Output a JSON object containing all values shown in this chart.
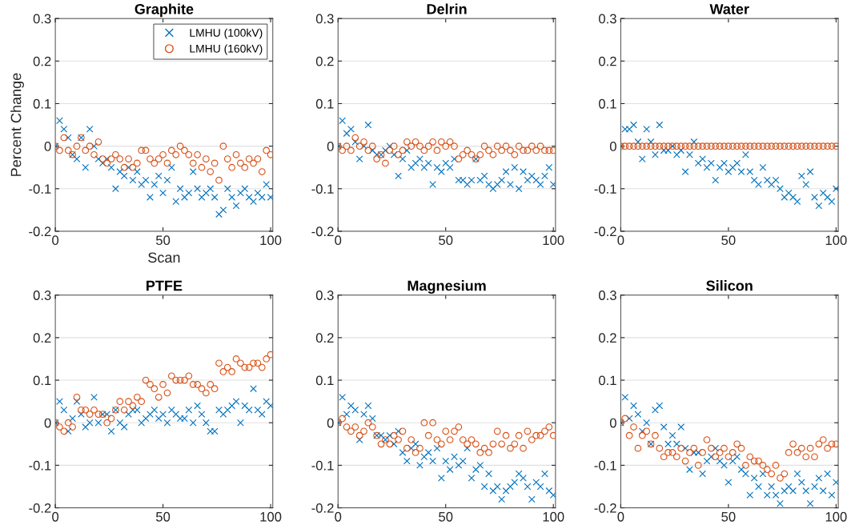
{
  "chart_data": [
    {
      "type": "scatter",
      "title": "Graphite",
      "xlabel": "Scan",
      "ylabel": "Percent Change",
      "xlim": [
        0,
        101
      ],
      "xticks": [
        0,
        50,
        100
      ],
      "ylim": [
        -0.2,
        0.3
      ],
      "yticks": [
        -0.2,
        -0.1,
        0,
        0.1,
        0.2,
        0.3
      ],
      "grid": "y",
      "legend": "top right",
      "x": [
        0,
        2,
        4,
        6,
        8,
        10,
        12,
        14,
        16,
        18,
        20,
        22,
        24,
        26,
        28,
        30,
        32,
        34,
        36,
        38,
        40,
        42,
        44,
        46,
        48,
        50,
        52,
        54,
        56,
        58,
        60,
        62,
        64,
        66,
        68,
        70,
        72,
        74,
        76,
        78,
        80,
        82,
        84,
        86,
        88,
        90,
        92,
        94,
        96,
        98,
        100
      ],
      "series": [
        {
          "name": "LMHU (100kV)",
          "color": "#0072bd",
          "marker": "cross",
          "values": [
            0,
            0.06,
            0.04,
            0.02,
            -0.02,
            -0.03,
            0.02,
            -0.05,
            0.04,
            0.0,
            -0.03,
            -0.04,
            -0.03,
            -0.05,
            -0.1,
            -0.06,
            -0.07,
            -0.05,
            -0.08,
            -0.06,
            -0.09,
            -0.08,
            -0.12,
            -0.09,
            -0.07,
            -0.11,
            -0.08,
            -0.05,
            -0.13,
            -0.1,
            -0.12,
            -0.11,
            -0.06,
            -0.1,
            -0.12,
            -0.11,
            -0.1,
            -0.12,
            -0.16,
            -0.15,
            -0.1,
            -0.12,
            -0.14,
            -0.11,
            -0.1,
            -0.12,
            -0.13,
            -0.11,
            -0.12,
            -0.09,
            -0.12
          ]
        },
        {
          "name": "LMHU (160kV)",
          "color": "#d95319",
          "marker": "circle",
          "values": [
            0,
            -0.01,
            0.02,
            -0.01,
            -0.02,
            0.0,
            0.02,
            -0.01,
            0.0,
            -0.02,
            0.01,
            -0.03,
            -0.04,
            -0.03,
            -0.02,
            -0.03,
            -0.05,
            -0.03,
            -0.05,
            -0.04,
            -0.01,
            -0.01,
            -0.03,
            -0.04,
            -0.03,
            -0.02,
            -0.04,
            -0.01,
            -0.02,
            0.0,
            -0.01,
            -0.02,
            -0.04,
            -0.02,
            -0.05,
            -0.03,
            -0.06,
            -0.04,
            -0.08,
            0.0,
            -0.03,
            -0.05,
            -0.02,
            -0.04,
            -0.05,
            -0.03,
            -0.04,
            -0.03,
            -0.06,
            -0.01,
            -0.02
          ]
        }
      ]
    },
    {
      "type": "scatter",
      "title": "Delrin",
      "xlim": [
        0,
        101
      ],
      "xticks": [
        0,
        50,
        100
      ],
      "ylim": [
        -0.2,
        0.3
      ],
      "yticks": [
        -0.2,
        -0.1,
        0,
        0.1,
        0.2,
        0.3
      ],
      "grid": "y",
      "x": [
        0,
        2,
        4,
        6,
        8,
        10,
        12,
        14,
        16,
        18,
        20,
        22,
        24,
        26,
        28,
        30,
        32,
        34,
        36,
        38,
        40,
        42,
        44,
        46,
        48,
        50,
        52,
        54,
        56,
        58,
        60,
        62,
        64,
        66,
        68,
        70,
        72,
        74,
        76,
        78,
        80,
        82,
        84,
        86,
        88,
        90,
        92,
        94,
        96,
        98,
        100
      ],
      "series": [
        {
          "color": "#0072bd",
          "marker": "cross",
          "values": [
            0,
            0.06,
            0.03,
            0.04,
            0.01,
            -0.03,
            0.0,
            0.05,
            -0.01,
            -0.02,
            -0.02,
            -0.01,
            0.0,
            -0.02,
            -0.07,
            -0.03,
            -0.01,
            -0.05,
            -0.04,
            -0.03,
            -0.05,
            -0.04,
            -0.09,
            -0.05,
            -0.06,
            -0.04,
            -0.05,
            -0.03,
            -0.08,
            -0.08,
            -0.09,
            -0.08,
            -0.03,
            -0.08,
            -0.07,
            -0.09,
            -0.1,
            -0.09,
            -0.08,
            -0.06,
            -0.09,
            -0.05,
            -0.1,
            -0.06,
            -0.08,
            -0.07,
            -0.08,
            -0.09,
            -0.07,
            -0.05,
            -0.09
          ]
        },
        {
          "color": "#d95319",
          "marker": "circle",
          "values": [
            0,
            -0.01,
            0.0,
            -0.01,
            0.02,
            0.0,
            0.01,
            -0.01,
            0.0,
            -0.03,
            -0.02,
            -0.04,
            -0.01,
            0.0,
            -0.02,
            -0.01,
            0.01,
            0.0,
            0.01,
            0.0,
            -0.01,
            0.0,
            0.01,
            -0.01,
            0.01,
            0.0,
            0.01,
            0.0,
            -0.03,
            -0.02,
            -0.01,
            -0.02,
            -0.03,
            -0.02,
            0.0,
            -0.01,
            -0.02,
            0.0,
            -0.01,
            0.0,
            -0.01,
            -0.02,
            0.0,
            -0.01,
            -0.01,
            0.0,
            -0.01,
            0.0,
            -0.01,
            -0.01,
            -0.01
          ]
        }
      ]
    },
    {
      "type": "scatter",
      "title": "Water",
      "xlim": [
        0,
        101
      ],
      "xticks": [
        0,
        50,
        100
      ],
      "ylim": [
        -0.2,
        0.3
      ],
      "yticks": [
        -0.2,
        -0.1,
        0,
        0.1,
        0.2,
        0.3
      ],
      "grid": "y",
      "x": [
        0,
        2,
        4,
        6,
        8,
        10,
        12,
        14,
        16,
        18,
        20,
        22,
        24,
        26,
        28,
        30,
        32,
        34,
        36,
        38,
        40,
        42,
        44,
        46,
        48,
        50,
        52,
        54,
        56,
        58,
        60,
        62,
        64,
        66,
        68,
        70,
        72,
        74,
        76,
        78,
        80,
        82,
        84,
        86,
        88,
        90,
        92,
        94,
        96,
        98,
        100
      ],
      "series": [
        {
          "color": "#0072bd",
          "marker": "cross",
          "values": [
            0,
            0.04,
            0.04,
            0.05,
            0.01,
            -0.03,
            0.04,
            0.01,
            -0.02,
            0.05,
            -0.01,
            -0.01,
            0.0,
            -0.02,
            -0.01,
            -0.06,
            -0.02,
            0.01,
            -0.04,
            -0.03,
            -0.05,
            -0.04,
            -0.08,
            -0.05,
            -0.04,
            -0.06,
            -0.05,
            -0.04,
            -0.06,
            -0.02,
            -0.06,
            -0.08,
            -0.09,
            -0.05,
            -0.08,
            -0.09,
            -0.08,
            -0.1,
            -0.12,
            -0.11,
            -0.12,
            -0.13,
            -0.07,
            -0.09,
            -0.06,
            -0.12,
            -0.14,
            -0.11,
            -0.12,
            -0.13,
            -0.1
          ]
        },
        {
          "color": "#d95319",
          "marker": "circle",
          "values": [
            0,
            0,
            0,
            0,
            0,
            0,
            0,
            0,
            0,
            0,
            0,
            0,
            0,
            0,
            0,
            0,
            0,
            0,
            0,
            0,
            0,
            0,
            0,
            0,
            0,
            0,
            0,
            0,
            0,
            0,
            0,
            0,
            0,
            0,
            0,
            0,
            0,
            0,
            0,
            0,
            0,
            0,
            0,
            0,
            0,
            0,
            0,
            0,
            0,
            0,
            0
          ]
        }
      ]
    },
    {
      "type": "scatter",
      "title": "PTFE",
      "xlim": [
        0,
        101
      ],
      "xticks": [
        0,
        50,
        100
      ],
      "ylim": [
        -0.2,
        0.3
      ],
      "yticks": [
        -0.2,
        -0.1,
        0,
        0.1,
        0.2,
        0.3
      ],
      "grid": "y",
      "x": [
        0,
        2,
        4,
        6,
        8,
        10,
        12,
        14,
        16,
        18,
        20,
        22,
        24,
        26,
        28,
        30,
        32,
        34,
        36,
        38,
        40,
        42,
        44,
        46,
        48,
        50,
        52,
        54,
        56,
        58,
        60,
        62,
        64,
        66,
        68,
        70,
        72,
        74,
        76,
        78,
        80,
        82,
        84,
        86,
        88,
        90,
        92,
        94,
        96,
        98,
        100
      ],
      "series": [
        {
          "color": "#0072bd",
          "marker": "cross",
          "values": [
            0,
            0.05,
            0.03,
            -0.02,
            0.01,
            0.05,
            0.02,
            -0.01,
            0.0,
            0.06,
            0.0,
            0.02,
            0.02,
            -0.02,
            0.03,
            0.0,
            -0.01,
            0.02,
            0.03,
            0.03,
            0.0,
            0.01,
            0.02,
            0.03,
            0.01,
            0.02,
            0.0,
            0.03,
            0.02,
            0.01,
            0.01,
            0.03,
            0.0,
            0.04,
            0.02,
            0.0,
            -0.02,
            -0.02,
            0.03,
            0.02,
            0.03,
            0.04,
            0.05,
            0.0,
            0.04,
            0.03,
            0.08,
            0.03,
            0.02,
            0.05,
            0.04
          ]
        },
        {
          "color": "#d95319",
          "marker": "circle",
          "values": [
            0,
            -0.01,
            -0.02,
            0.0,
            -0.01,
            0.06,
            0.03,
            0.03,
            0.02,
            0.03,
            0.02,
            0.02,
            0.0,
            0.01,
            0.03,
            0.05,
            0.03,
            0.05,
            0.04,
            0.06,
            0.05,
            0.1,
            0.09,
            0.08,
            0.06,
            0.09,
            0.07,
            0.11,
            0.1,
            0.1,
            0.1,
            0.11,
            0.09,
            0.09,
            0.08,
            0.07,
            0.09,
            0.08,
            0.14,
            0.12,
            0.13,
            0.12,
            0.15,
            0.14,
            0.13,
            0.13,
            0.14,
            0.14,
            0.13,
            0.15,
            0.16
          ]
        }
      ]
    },
    {
      "type": "scatter",
      "title": "Magnesium",
      "xlim": [
        0,
        101
      ],
      "xticks": [
        0,
        50,
        100
      ],
      "ylim": [
        -0.2,
        0.3
      ],
      "yticks": [
        -0.2,
        -0.1,
        0,
        0.1,
        0.2,
        0.3
      ],
      "grid": "y",
      "x": [
        0,
        2,
        4,
        6,
        8,
        10,
        12,
        14,
        16,
        18,
        20,
        22,
        24,
        26,
        28,
        30,
        32,
        34,
        36,
        38,
        40,
        42,
        44,
        46,
        48,
        50,
        52,
        54,
        56,
        58,
        60,
        62,
        64,
        66,
        68,
        70,
        72,
        74,
        76,
        78,
        80,
        82,
        84,
        86,
        88,
        90,
        92,
        94,
        96,
        98,
        100
      ],
      "series": [
        {
          "color": "#0072bd",
          "marker": "cross",
          "values": [
            0,
            0.06,
            0.02,
            0.04,
            0.03,
            -0.04,
            0.02,
            0.04,
            0.01,
            -0.03,
            -0.03,
            -0.04,
            -0.03,
            -0.05,
            -0.02,
            -0.07,
            -0.09,
            -0.06,
            -0.05,
            -0.1,
            -0.08,
            -0.07,
            -0.09,
            -0.06,
            -0.13,
            -0.09,
            -0.11,
            -0.08,
            -0.1,
            -0.09,
            -0.06,
            -0.13,
            -0.11,
            -0.1,
            -0.15,
            -0.12,
            -0.16,
            -0.15,
            -0.18,
            -0.16,
            -0.15,
            -0.14,
            -0.12,
            -0.13,
            -0.15,
            -0.18,
            -0.14,
            -0.15,
            -0.12,
            -0.16,
            -0.17
          ]
        },
        {
          "color": "#d95319",
          "marker": "circle",
          "values": [
            0,
            0.01,
            -0.01,
            -0.02,
            -0.01,
            -0.03,
            -0.02,
            0.0,
            -0.01,
            -0.03,
            -0.05,
            -0.04,
            -0.05,
            -0.03,
            -0.04,
            -0.02,
            -0.06,
            -0.04,
            -0.07,
            -0.06,
            0.0,
            -0.03,
            0.0,
            -0.04,
            -0.05,
            -0.02,
            -0.04,
            -0.02,
            -0.01,
            -0.04,
            -0.05,
            -0.04,
            -0.05,
            -0.07,
            -0.06,
            -0.07,
            -0.05,
            -0.02,
            -0.05,
            -0.03,
            -0.06,
            -0.05,
            -0.03,
            -0.06,
            -0.02,
            -0.04,
            -0.03,
            -0.03,
            -0.02,
            -0.01,
            -0.03
          ]
        }
      ]
    },
    {
      "type": "scatter",
      "title": "Silicon",
      "xlim": [
        0,
        101
      ],
      "xticks": [
        0,
        50,
        100
      ],
      "ylim": [
        -0.2,
        0.3
      ],
      "yticks": [
        -0.2,
        -0.1,
        0,
        0.1,
        0.2,
        0.3
      ],
      "grid": "y",
      "x": [
        0,
        2,
        4,
        6,
        8,
        10,
        12,
        14,
        16,
        18,
        20,
        22,
        24,
        26,
        28,
        30,
        32,
        34,
        36,
        38,
        40,
        42,
        44,
        46,
        48,
        50,
        52,
        54,
        56,
        58,
        60,
        62,
        64,
        66,
        68,
        70,
        72,
        74,
        76,
        78,
        80,
        82,
        84,
        86,
        88,
        90,
        92,
        94,
        96,
        98,
        100
      ],
      "series": [
        {
          "color": "#0072bd",
          "marker": "cross",
          "values": [
            0,
            0.06,
            0.01,
            0.04,
            0.02,
            -0.02,
            0.0,
            -0.05,
            0.03,
            0.04,
            -0.01,
            -0.05,
            -0.03,
            -0.05,
            -0.01,
            -0.06,
            -0.11,
            -0.07,
            -0.07,
            -0.12,
            -0.09,
            -0.08,
            -0.06,
            -0.09,
            -0.1,
            -0.14,
            -0.09,
            -0.08,
            -0.11,
            -0.12,
            -0.17,
            -0.13,
            -0.15,
            -0.12,
            -0.17,
            -0.15,
            -0.17,
            -0.19,
            -0.16,
            -0.15,
            -0.16,
            -0.12,
            -0.14,
            -0.16,
            -0.19,
            -0.15,
            -0.13,
            -0.16,
            -0.12,
            -0.17,
            -0.14
          ]
        },
        {
          "color": "#d95319",
          "marker": "circle",
          "values": [
            0,
            0.01,
            -0.03,
            -0.01,
            -0.06,
            -0.03,
            -0.02,
            -0.05,
            -0.03,
            -0.06,
            -0.08,
            -0.07,
            -0.07,
            -0.08,
            -0.06,
            -0.09,
            -0.07,
            -0.06,
            -0.1,
            -0.07,
            -0.04,
            -0.06,
            -0.08,
            -0.07,
            -0.06,
            -0.08,
            -0.07,
            -0.05,
            -0.06,
            -0.1,
            -0.08,
            -0.09,
            -0.09,
            -0.1,
            -0.11,
            -0.12,
            -0.1,
            -0.13,
            -0.12,
            -0.07,
            -0.05,
            -0.07,
            -0.06,
            -0.08,
            -0.06,
            -0.08,
            -0.05,
            -0.04,
            -0.06,
            -0.05,
            -0.05
          ]
        }
      ]
    }
  ]
}
